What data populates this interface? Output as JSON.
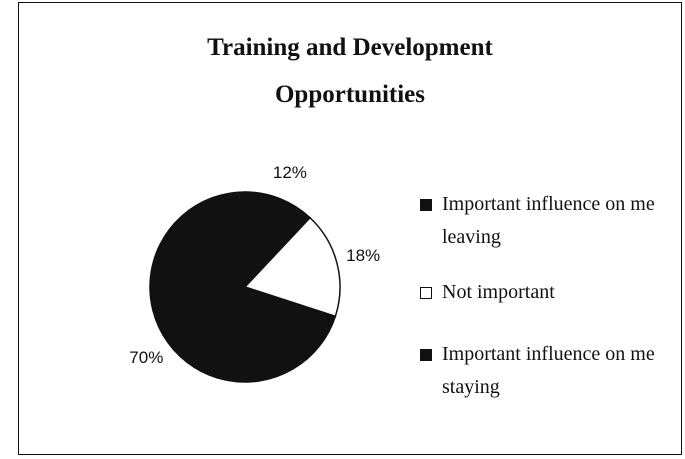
{
  "chart_data": {
    "type": "pie",
    "title": "Training and Development Opportunities",
    "categories": [
      "Important influence on me leaving",
      "Not important",
      "Important influence on me staying"
    ],
    "values": [
      12,
      18,
      70
    ],
    "value_labels": [
      "12%",
      "18%",
      "70%"
    ],
    "colors": [
      "#111111",
      "#ffffff",
      "#111111"
    ],
    "legend": "right"
  }
}
